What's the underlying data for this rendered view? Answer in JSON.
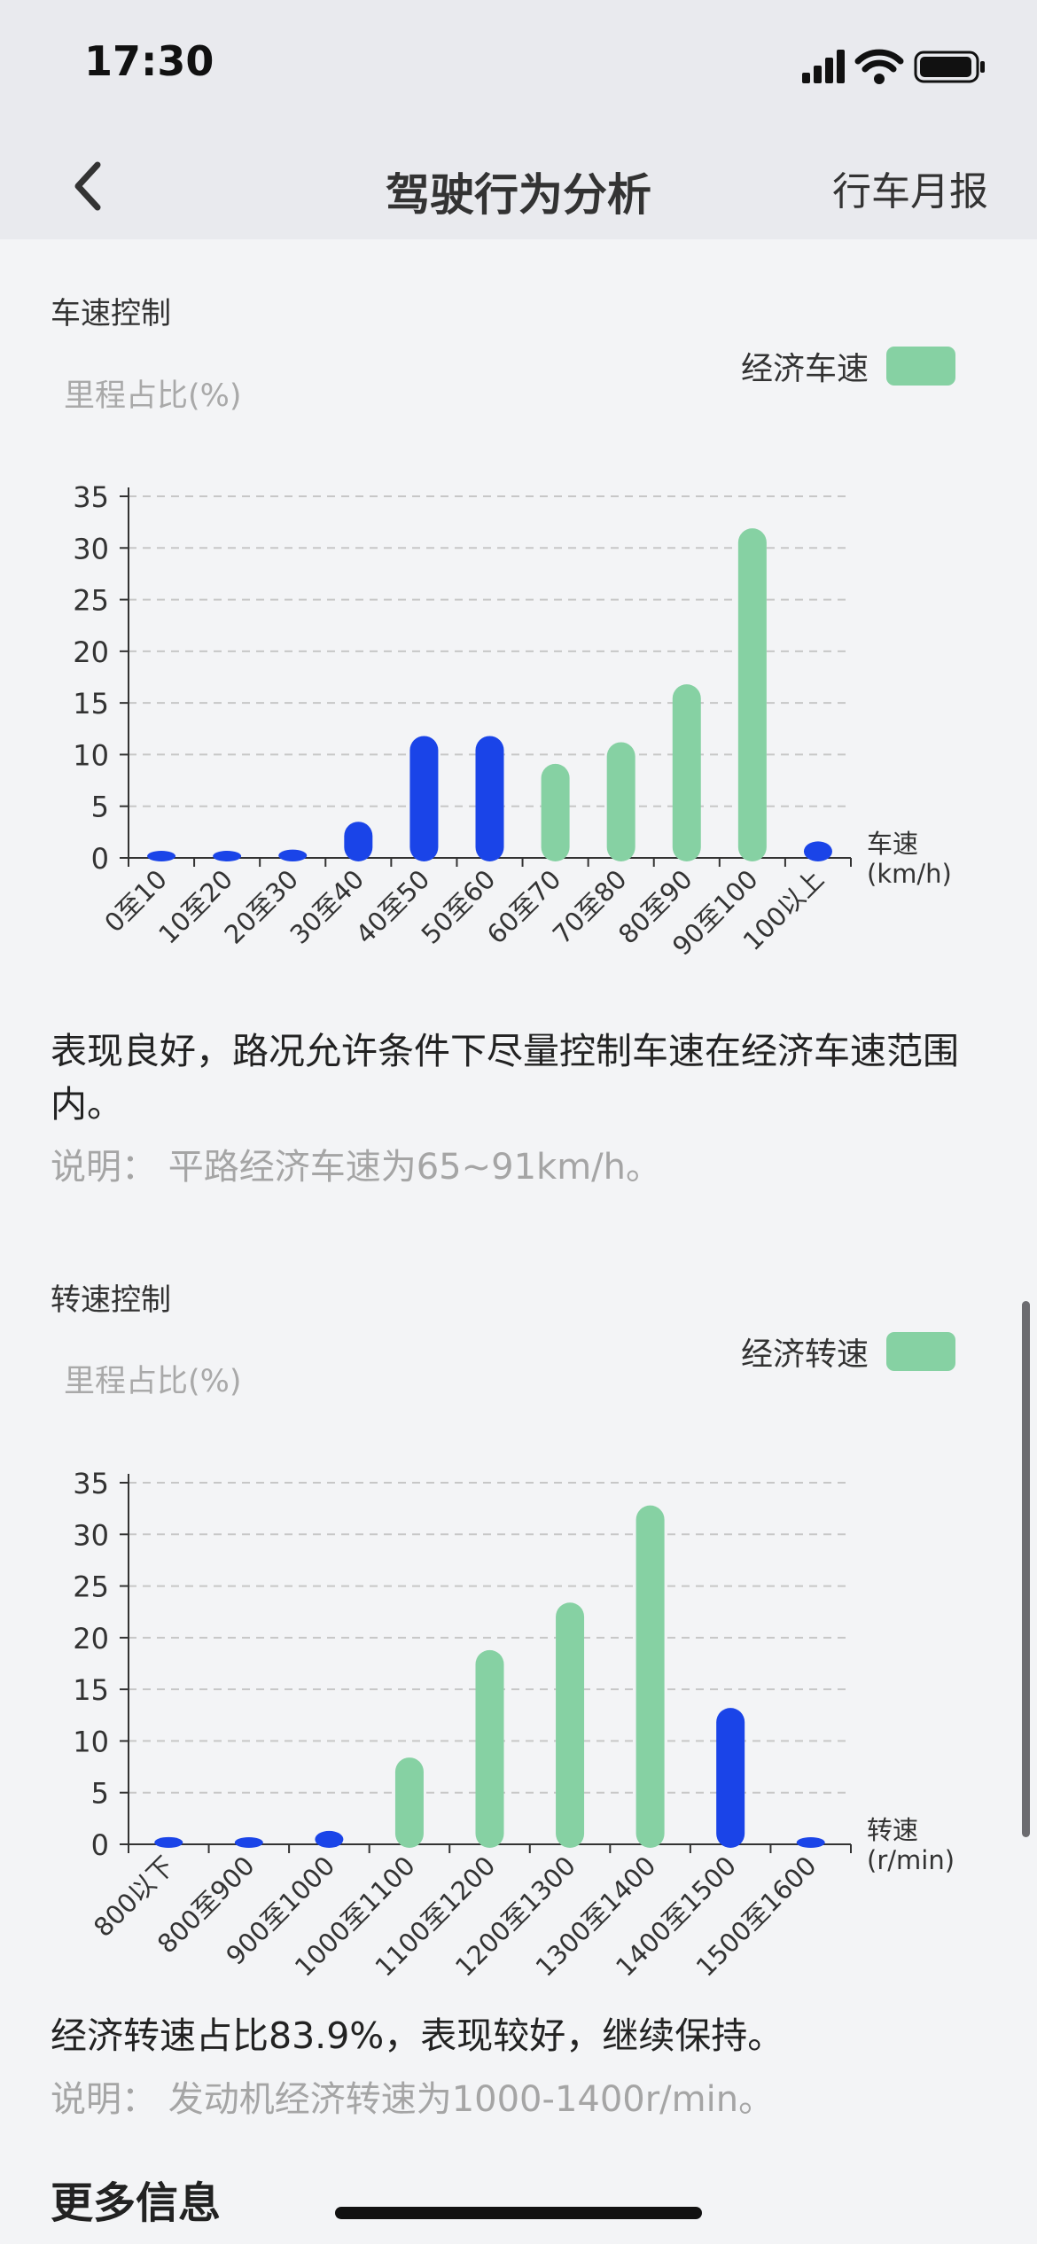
{
  "status": {
    "time": "17:30"
  },
  "nav": {
    "title": "驾驶行为分析",
    "right_action": "行车月报"
  },
  "speed_section": {
    "title": "车速控制",
    "y_unit": "里程占比(%)",
    "legend_label": "经济车速",
    "x_unit_line1": "车速",
    "x_unit_line2": "(km/h)",
    "description": "表现良好，路况允许条件下尽量控制车速在经济车速范围内。",
    "note": "说明：  平路经济车速为65~91km/h。"
  },
  "rpm_section": {
    "title": "转速控制",
    "y_unit": "里程占比(%)",
    "legend_label": "经济转速",
    "x_unit_line1": "转速",
    "x_unit_line2": "(r/min)",
    "description": "经济转速占比83.9%，表现较好，继续保持。",
    "note": "说明：  发动机经济转速为1000-1400r/min。"
  },
  "more_info_title": "更多信息",
  "colors": {
    "economy": "#86d1a3",
    "normal": "#1a44e8",
    "axis": "#333333",
    "grid": "#c7c7c7"
  },
  "chart_data": [
    {
      "type": "bar",
      "title": "车速控制",
      "ylabel": "里程占比(%)",
      "xlabel": "车速 (km/h)",
      "ylim": [
        0,
        35
      ],
      "yticks": [
        0,
        5,
        10,
        15,
        20,
        25,
        30,
        35
      ],
      "grid": true,
      "legend": "top-right",
      "categories": [
        "0至10",
        "10至20",
        "20至30",
        "30至40",
        "40至50",
        "50至60",
        "60至70",
        "70至80",
        "80至90",
        "90至100",
        "100以上"
      ],
      "values": [
        0.3,
        0.4,
        0.8,
        3.5,
        11.8,
        11.8,
        9.1,
        11.2,
        16.8,
        31.9,
        1.6
      ],
      "economy": [
        false,
        false,
        false,
        false,
        false,
        false,
        true,
        true,
        true,
        true,
        false
      ],
      "series": [
        {
          "name": "经济车速",
          "values": [
            null,
            null,
            null,
            null,
            null,
            null,
            9.1,
            11.2,
            16.8,
            31.9,
            null
          ]
        }
      ]
    },
    {
      "type": "bar",
      "title": "转速控制",
      "ylabel": "里程占比(%)",
      "xlabel": "转速 (r/min)",
      "ylim": [
        0,
        35
      ],
      "yticks": [
        0,
        5,
        10,
        15,
        20,
        25,
        30,
        35
      ],
      "grid": true,
      "legend": "top-right",
      "categories": [
        "800以下",
        "800至900",
        "900至1000",
        "1000至1100",
        "1100至1200",
        "1200至1300",
        "1300至1400",
        "1400至1500",
        "1500至1600"
      ],
      "values": [
        0.7,
        0.4,
        1.3,
        8.4,
        18.8,
        23.4,
        32.8,
        13.2,
        0.4
      ],
      "economy": [
        false,
        false,
        false,
        true,
        true,
        true,
        true,
        false,
        false
      ],
      "series": [
        {
          "name": "经济转速",
          "values": [
            null,
            null,
            null,
            8.4,
            18.8,
            23.4,
            32.8,
            null,
            null
          ]
        }
      ]
    }
  ]
}
